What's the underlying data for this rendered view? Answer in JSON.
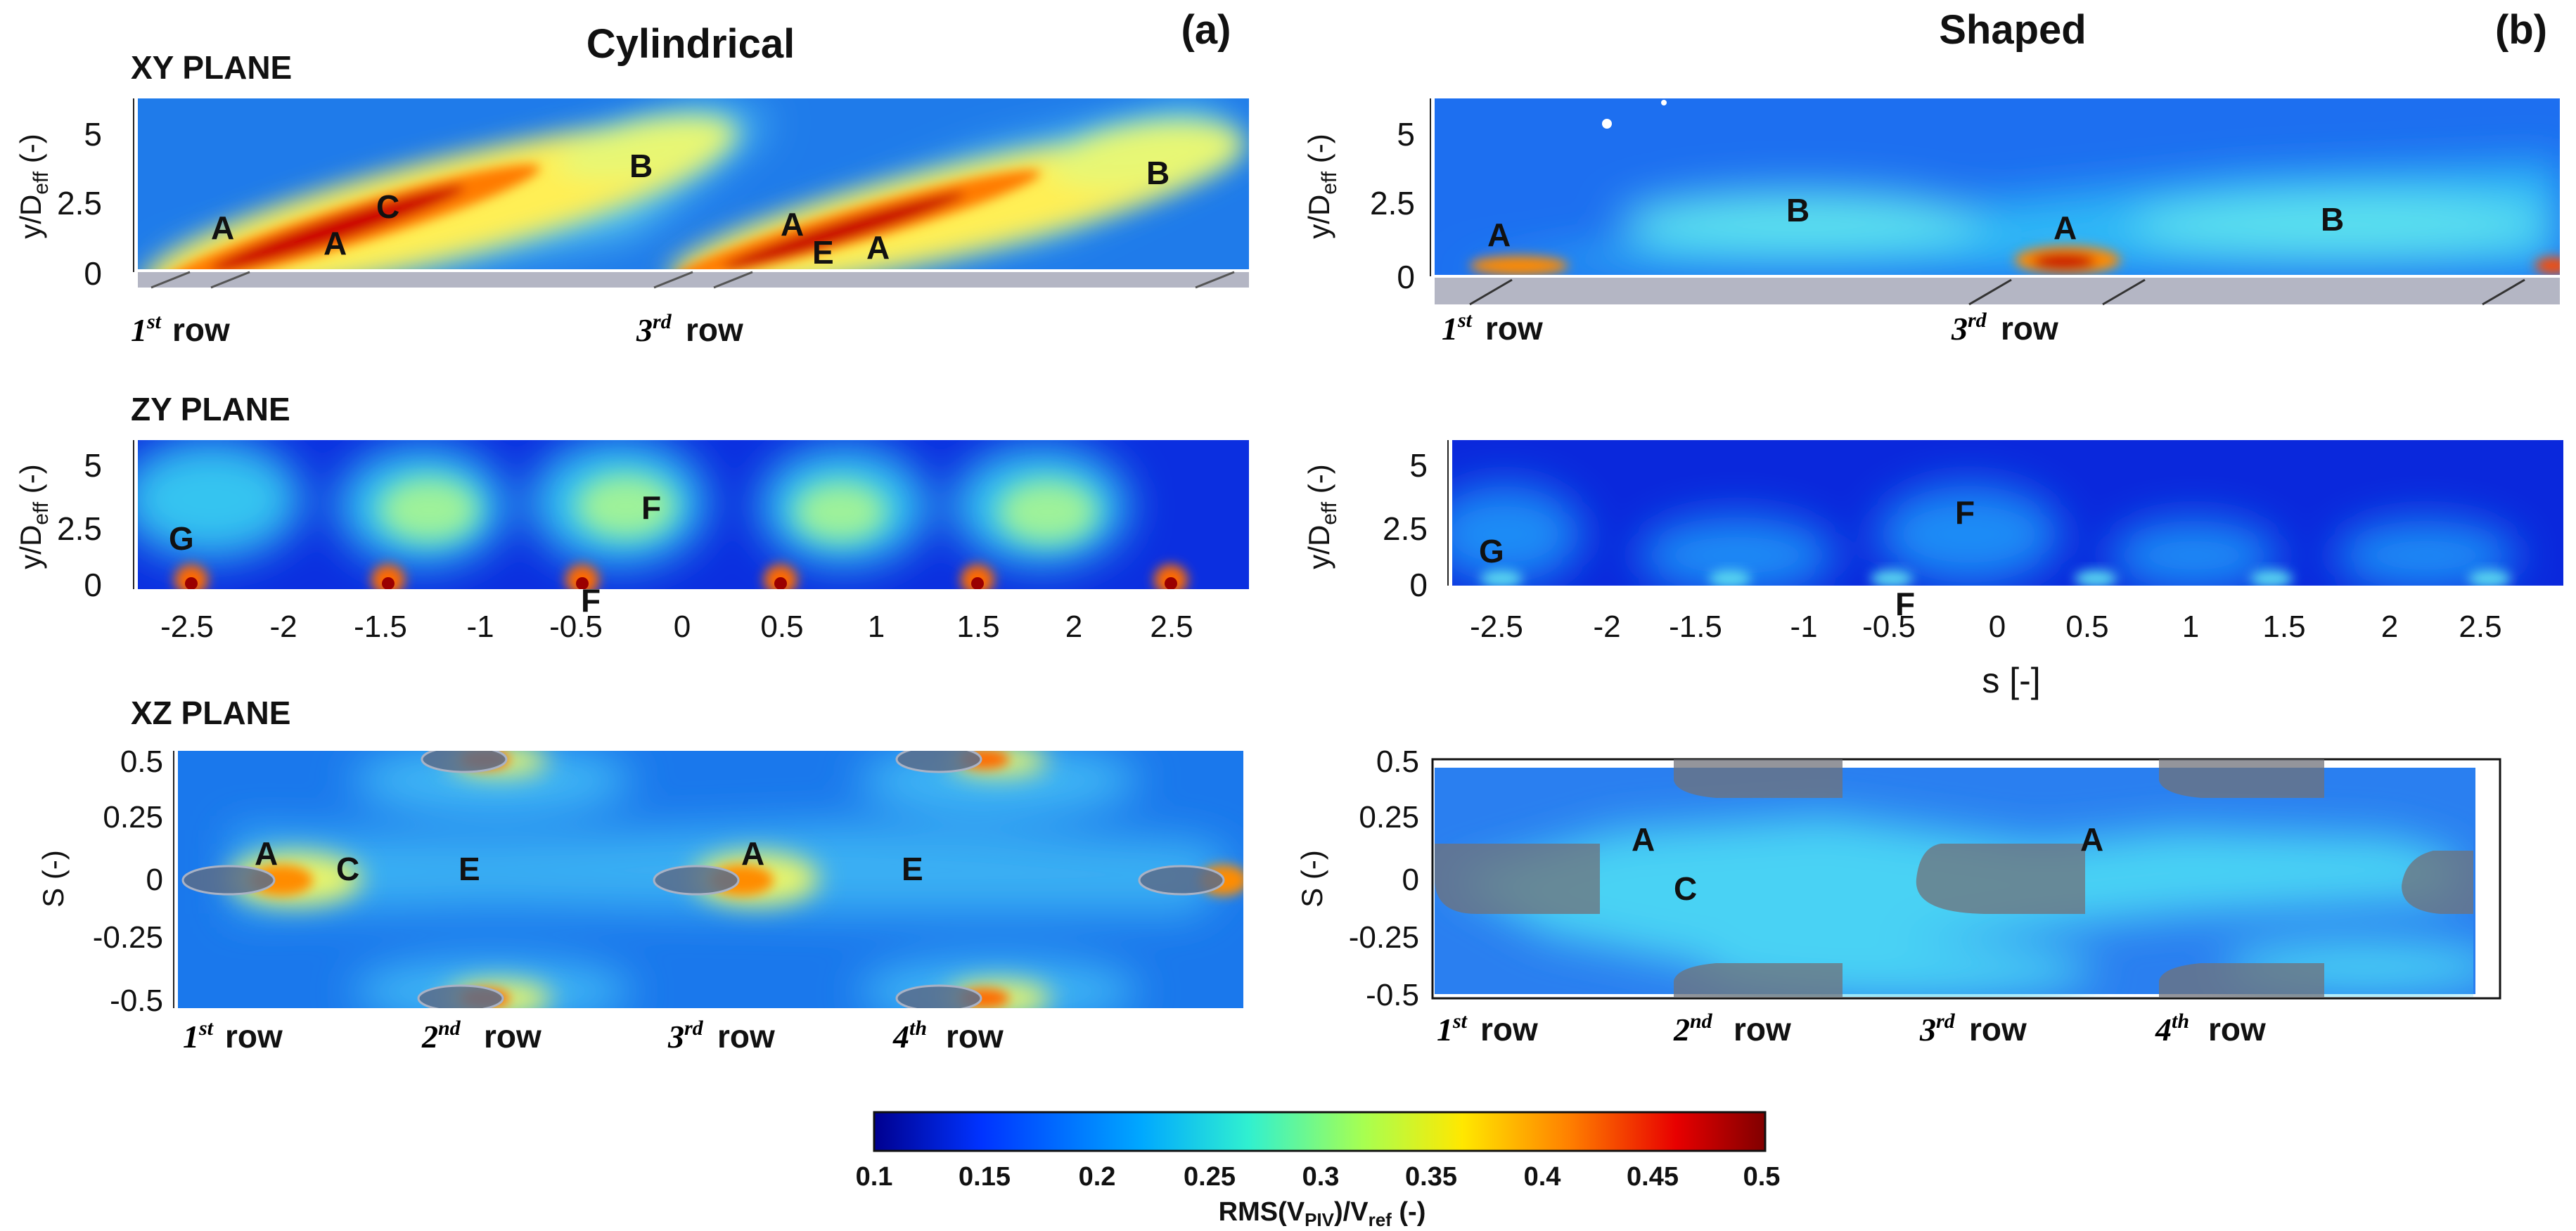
{
  "titles": {
    "left": "Cylindrical",
    "right": "Shaped",
    "panel_a": "(a)",
    "panel_b": "(b)"
  },
  "planes": {
    "xy": "XY PLANE",
    "zy": "ZY PLANE",
    "xz": "XZ PLANE"
  },
  "axes": {
    "y_label_main": "y/D",
    "y_label_sub": "eff",
    "y_label_unit": " (-)",
    "s_label_upper": "s [-]",
    "s_label_lower": "S (-)",
    "y_ticks": [
      "0",
      "2.5",
      "5"
    ],
    "s_ticks": [
      "-2.5",
      "-2",
      "-1.5",
      "-1",
      "-0.5",
      "0",
      "0.5",
      "1",
      "1.5",
      "2",
      "2.5"
    ],
    "xz_ticks_a": [
      "0.5",
      "0.25",
      "0",
      "-0.25",
      "-0.5"
    ],
    "xz_ticks_b": [
      "0.5",
      "0.25",
      "0",
      "-0.25",
      "-0.5"
    ]
  },
  "rows": {
    "r1_num": "1",
    "r1_sup": "st",
    "r2_num": "2",
    "r2_sup": "nd",
    "r3_num": "3",
    "r3_sup": "rd",
    "r4_num": "4",
    "r4_sup": "th",
    "word": "row"
  },
  "region_labels": {
    "A": "A",
    "B": "B",
    "C": "C",
    "E": "E",
    "F": "F",
    "G": "G"
  },
  "colorbar": {
    "ticks": [
      "0.1",
      "0.15",
      "0.2",
      "0.25",
      "0.3",
      "0.35",
      "0.4",
      "0.45",
      "0.5"
    ],
    "label_main": "RMS(V",
    "label_sub1": "PIV",
    "label_mid": ")/V",
    "label_sub2": "ref",
    "label_end": " (-)",
    "min": 0.1,
    "max": 0.5,
    "colors": [
      "#00008f",
      "#0044ff",
      "#00b4ff",
      "#40ffc0",
      "#c0ff40",
      "#ffd000",
      "#ff5a00",
      "#d00000",
      "#800000"
    ]
  }
}
